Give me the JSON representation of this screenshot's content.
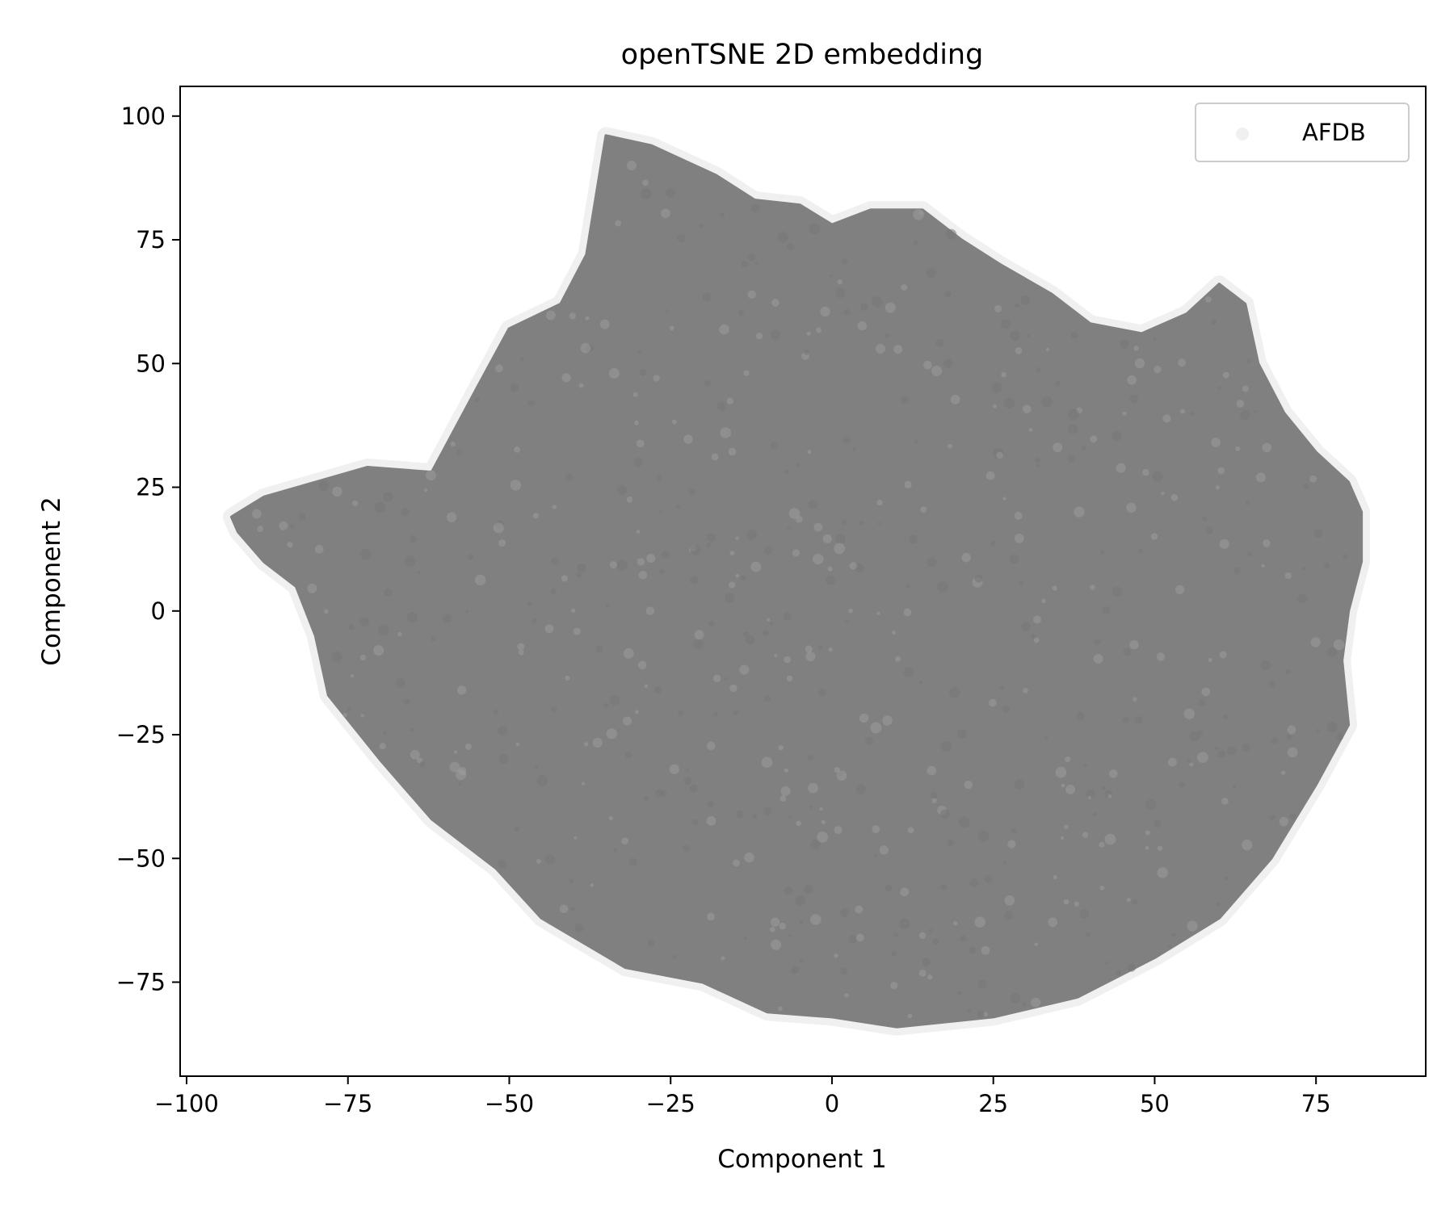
{
  "chart_data": {
    "type": "scatter",
    "title": "openTSNE 2D embedding",
    "xlabel": "Component 1",
    "ylabel": "Component 2",
    "xlim": [
      -101,
      92
    ],
    "ylim": [
      -94,
      106
    ],
    "xticks": [
      -100,
      -75,
      -50,
      -25,
      0,
      25,
      50,
      75
    ],
    "xtick_labels": [
      "−100",
      "−75",
      "−50",
      "−25",
      "0",
      "25",
      "50",
      "75"
    ],
    "yticks": [
      -75,
      -50,
      -25,
      0,
      25,
      50,
      75,
      100
    ],
    "ytick_labels": [
      "−75",
      "−50",
      "−25",
      "0",
      "25",
      "50",
      "75",
      "100"
    ],
    "grid": false,
    "legend_position": "top-right",
    "series": [
      {
        "name": "AFDB",
        "color": "#808080",
        "point_density": "very dense cloud",
        "boundary": [
          [
            -93,
            19
          ],
          [
            -88,
            23
          ],
          [
            -80,
            26
          ],
          [
            -72,
            29
          ],
          [
            -62,
            28
          ],
          [
            -55,
            45
          ],
          [
            -50,
            57
          ],
          [
            -42,
            62
          ],
          [
            -38,
            72
          ],
          [
            -35,
            96
          ],
          [
            -28,
            94
          ],
          [
            -18,
            88
          ],
          [
            -12,
            83
          ],
          [
            -5,
            82
          ],
          [
            0,
            78
          ],
          [
            6,
            81
          ],
          [
            14,
            81
          ],
          [
            20,
            75
          ],
          [
            26,
            70
          ],
          [
            34,
            64
          ],
          [
            40,
            58
          ],
          [
            48,
            56
          ],
          [
            55,
            60
          ],
          [
            60,
            66
          ],
          [
            64,
            62
          ],
          [
            66,
            50
          ],
          [
            70,
            40
          ],
          [
            75,
            32
          ],
          [
            80,
            26
          ],
          [
            82,
            20
          ],
          [
            82,
            10
          ],
          [
            80,
            0
          ],
          [
            79,
            -10
          ],
          [
            80,
            -23
          ],
          [
            75,
            -35
          ],
          [
            68,
            -50
          ],
          [
            60,
            -62
          ],
          [
            50,
            -70
          ],
          [
            38,
            -78
          ],
          [
            25,
            -82
          ],
          [
            10,
            -84
          ],
          [
            0,
            -82
          ],
          [
            -10,
            -81
          ],
          [
            -20,
            -75
          ],
          [
            -32,
            -72
          ],
          [
            -45,
            -62
          ],
          [
            -52,
            -52
          ],
          [
            -62,
            -42
          ],
          [
            -70,
            -30
          ],
          [
            -78,
            -17
          ],
          [
            -80,
            -5
          ],
          [
            -83,
            5
          ],
          [
            -88,
            10
          ],
          [
            -92,
            16
          ]
        ]
      }
    ]
  }
}
